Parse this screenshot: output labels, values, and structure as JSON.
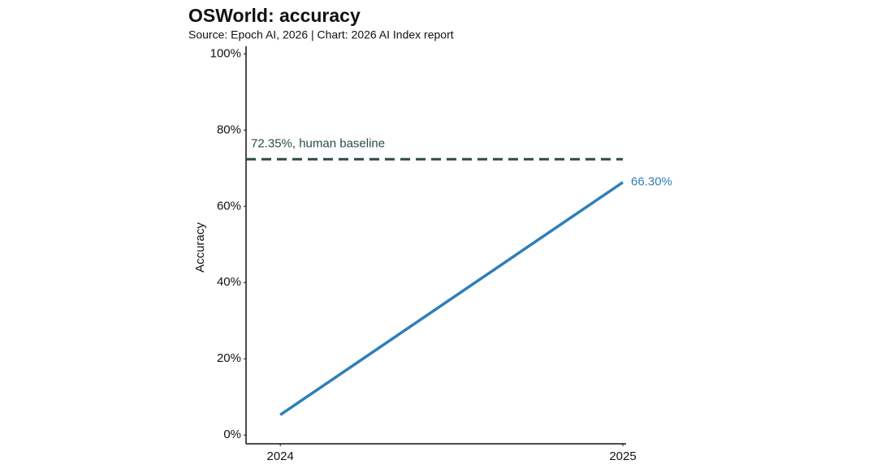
{
  "chart_data": {
    "type": "line",
    "title": "OSWorld: accuracy",
    "subtitle": "Source: Epoch AI, 2026 | Chart: 2026 AI Index report",
    "y_label": "Accuracy",
    "x": [
      2024,
      2025
    ],
    "xlim": [
      2023.9,
      2025
    ],
    "xticks": [
      2024,
      2025
    ],
    "ylim": [
      -2.3,
      102
    ],
    "yticks": [
      {
        "value": 0,
        "label": "0%"
      },
      {
        "value": 20,
        "label": "20%"
      },
      {
        "value": 40,
        "label": "40%"
      },
      {
        "value": 60,
        "label": "60%"
      },
      {
        "value": 80,
        "label": "80%"
      },
      {
        "value": 100,
        "label": "100%"
      }
    ],
    "series": [
      {
        "name": "OSWorld accuracy",
        "color": "#2f7fb8",
        "values": [
          5.3,
          66.3
        ],
        "value_labels": [
          null,
          "66.30%"
        ]
      }
    ],
    "baseline": {
      "value": 72.35,
      "label": "72.35%, human baseline",
      "color": "#2c4a4a"
    }
  }
}
